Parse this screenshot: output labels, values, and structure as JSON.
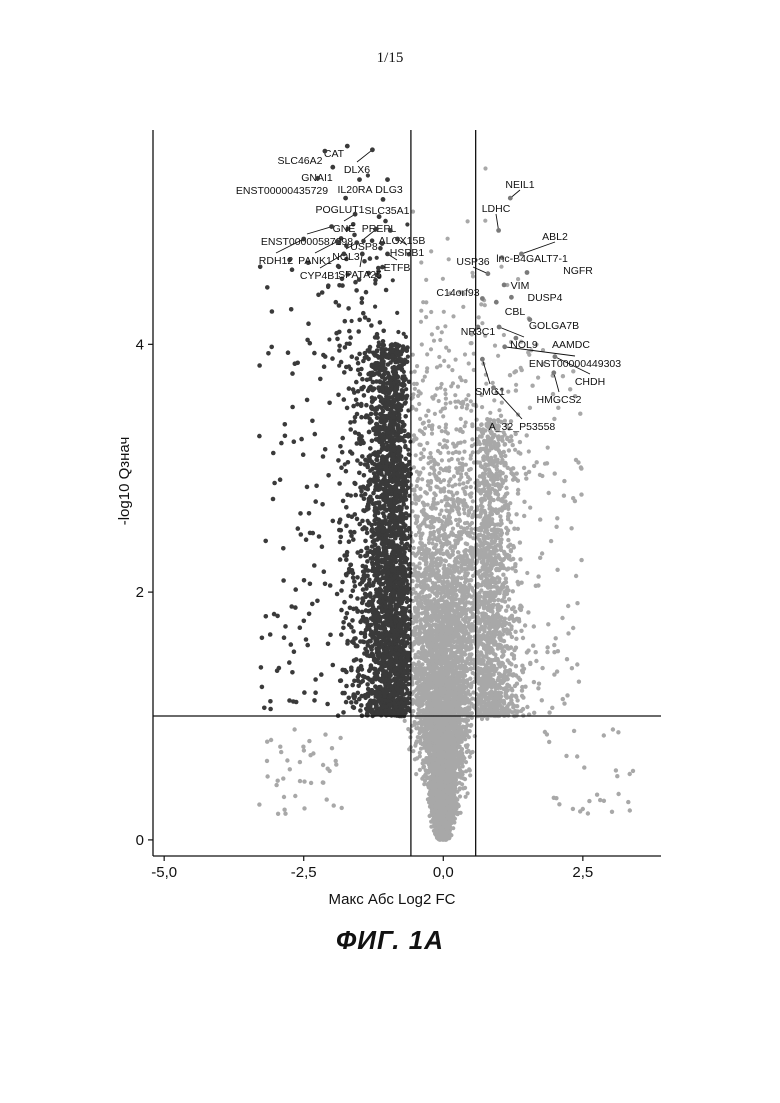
{
  "page_number": "1/15",
  "figure_caption": "ФИГ. 1А",
  "colors": {
    "significant_down": "#3a3a3a",
    "nonsignificant": "#a8a8a8",
    "significant_up": "#a8a8a8",
    "lines": "#111111"
  },
  "chart_data": {
    "type": "scatter",
    "title": "",
    "xlabel": "Макс Абс Log2 FC",
    "ylabel": "-log10 Qзнач",
    "xlim": [
      -5.2,
      3.9
    ],
    "ylim": [
      -0.13,
      5.73
    ],
    "x_ticks": [
      -5.0,
      -2.5,
      0.0,
      2.5
    ],
    "x_tick_labels": [
      "-5,0",
      "-2,5",
      "0,0",
      "2,5"
    ],
    "y_ticks": [
      0,
      2,
      4
    ],
    "y_tick_labels": [
      "0",
      "2",
      "4"
    ],
    "grid": false,
    "legend": "none",
    "threshold_lines": {
      "x": [
        -0.58,
        0.58
      ],
      "y": [
        1.0
      ]
    },
    "labeled_genes": [
      {
        "name": "CAT",
        "x": -1.72,
        "y": 5.6
      },
      {
        "name": "SLC46A2",
        "x": -2.12,
        "y": 5.56
      },
      {
        "name": "DLX6",
        "x": -1.27,
        "y": 5.57
      },
      {
        "name": "GNAI1",
        "x": -1.98,
        "y": 5.43
      },
      {
        "name": "ENST00000435729",
        "x": -2.25,
        "y": 5.34
      },
      {
        "name": "IL20RA",
        "x": -1.5,
        "y": 5.33
      },
      {
        "name": "DLG3",
        "x": -1.0,
        "y": 5.33
      },
      {
        "name": "POGLUT1",
        "x": -1.75,
        "y": 5.18
      },
      {
        "name": "SLC35A1",
        "x": -1.08,
        "y": 5.17
      },
      {
        "name": "GNE",
        "x": -1.58,
        "y": 5.05
      },
      {
        "name": "PREPL",
        "x": -1.15,
        "y": 5.03
      },
      {
        "name": "ENST00000587298",
        "x": -2.0,
        "y": 4.95
      },
      {
        "name": "USP8",
        "x": -1.2,
        "y": 4.93
      },
      {
        "name": "ALOX15B",
        "x": -0.95,
        "y": 4.92
      },
      {
        "name": "HSPB1",
        "x": -0.82,
        "y": 4.85
      },
      {
        "name": "RDH12",
        "x": -2.5,
        "y": 4.85
      },
      {
        "name": "PANK1",
        "x": -1.9,
        "y": 4.83
      },
      {
        "name": "NOL3",
        "x": -1.55,
        "y": 4.82
      },
      {
        "name": "CYP4B1",
        "x": -1.78,
        "y": 4.73
      },
      {
        "name": "SPATA25",
        "x": -1.45,
        "y": 4.73
      },
      {
        "name": "ETFB",
        "x": -1.0,
        "y": 4.73
      },
      {
        "name": "NEIL1",
        "x": 1.2,
        "y": 5.18
      },
      {
        "name": "LDHC",
        "x": 0.99,
        "y": 4.92
      },
      {
        "name": "ABL2",
        "x": 1.4,
        "y": 4.73
      },
      {
        "name": "lnc-B4GALT7-1",
        "x": 1.05,
        "y": 4.7
      },
      {
        "name": "USP36",
        "x": 0.8,
        "y": 4.57
      },
      {
        "name": "NGFR",
        "x": 1.5,
        "y": 4.58
      },
      {
        "name": "VIM",
        "x": 1.09,
        "y": 4.48
      },
      {
        "name": "C14orf93",
        "x": 0.7,
        "y": 4.37
      },
      {
        "name": "DUSP4",
        "x": 1.22,
        "y": 4.38
      },
      {
        "name": "CBL",
        "x": 0.95,
        "y": 4.34
      },
      {
        "name": "GOLGA7B",
        "x": 1.55,
        "y": 4.2
      },
      {
        "name": "NR3C1",
        "x": 0.62,
        "y": 4.14
      },
      {
        "name": "NOL9",
        "x": 1.0,
        "y": 4.14
      },
      {
        "name": "AAMDC",
        "x": 1.3,
        "y": 4.05
      },
      {
        "name": "ENST00000449303",
        "x": 1.1,
        "y": 3.98
      },
      {
        "name": "CHDH",
        "x": 2.0,
        "y": 3.9
      },
      {
        "name": "SMG1",
        "x": 0.7,
        "y": 3.88
      },
      {
        "name": "HMGCS2",
        "x": 1.98,
        "y": 3.77
      },
      {
        "name": "A_32_P53558",
        "x": 0.9,
        "y": 3.65
      }
    ]
  }
}
